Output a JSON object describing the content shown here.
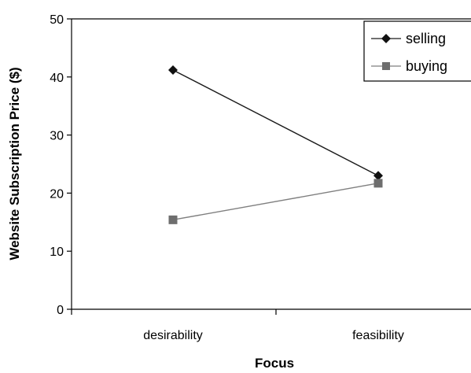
{
  "chart_data": {
    "type": "line",
    "categories": [
      "desirability",
      "feasibility"
    ],
    "series": [
      {
        "name": "selling",
        "values": [
          41.2,
          23.0
        ],
        "color": "#1a1a1a",
        "marker": "diamond"
      },
      {
        "name": "buying",
        "values": [
          15.4,
          21.7
        ],
        "color": "#7f7f7f",
        "marker": "square"
      }
    ],
    "xlabel": "Focus",
    "ylabel": "Website Subscription Price ($)",
    "ylim": [
      0,
      50
    ],
    "yticks": [
      "0",
      "10",
      "20",
      "30",
      "40",
      "50"
    ],
    "grid": false,
    "legend": "top-right"
  }
}
